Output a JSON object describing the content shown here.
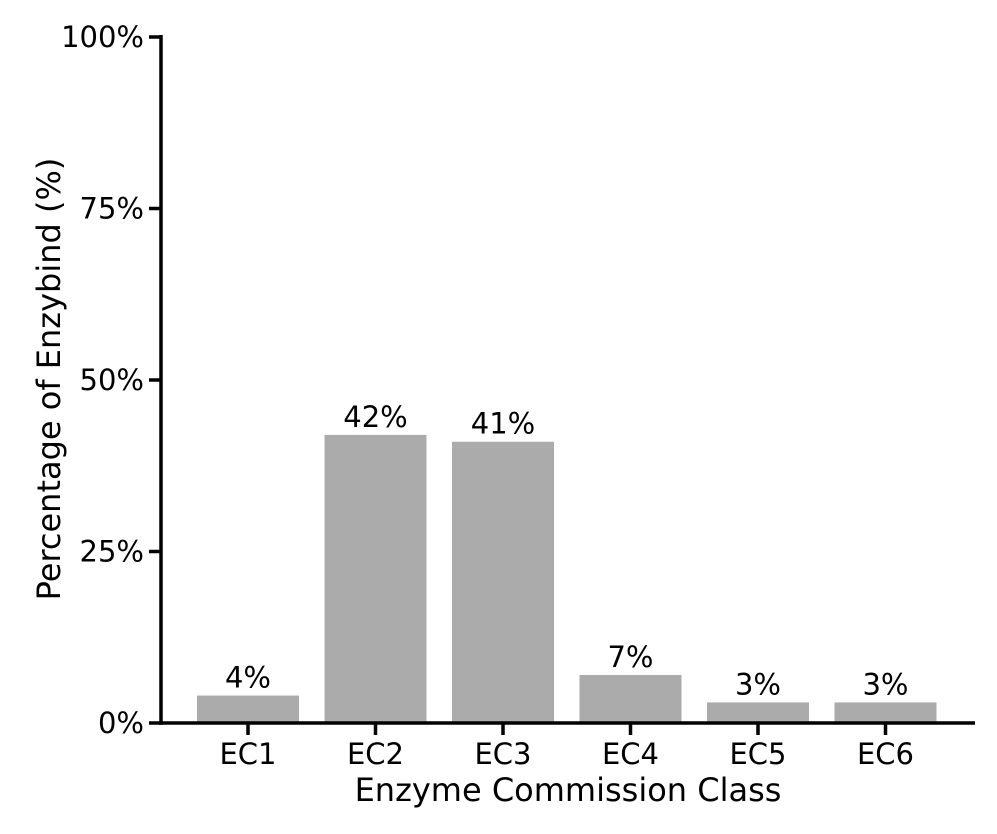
{
  "chart_data": {
    "type": "bar",
    "title": "",
    "xlabel": "Enzyme Commission Class",
    "ylabel": "Percentage of Enzybind (%)",
    "categories": [
      "EC1",
      "EC2",
      "EC3",
      "EC4",
      "EC5",
      "EC6"
    ],
    "values": [
      4,
      42,
      41,
      7,
      3,
      3
    ],
    "value_labels": [
      "4%",
      "42%",
      "41%",
      "7%",
      "3%",
      "3%"
    ],
    "yticks": [
      0,
      25,
      50,
      75,
      100
    ],
    "ytick_labels": [
      "0%",
      "25%",
      "50%",
      "75%",
      "100%"
    ],
    "ylim": [
      0,
      100
    ],
    "grid": false,
    "legend": "none",
    "bar_color": "#ababab",
    "axis_color": "#000000",
    "text_color": "#000000"
  }
}
